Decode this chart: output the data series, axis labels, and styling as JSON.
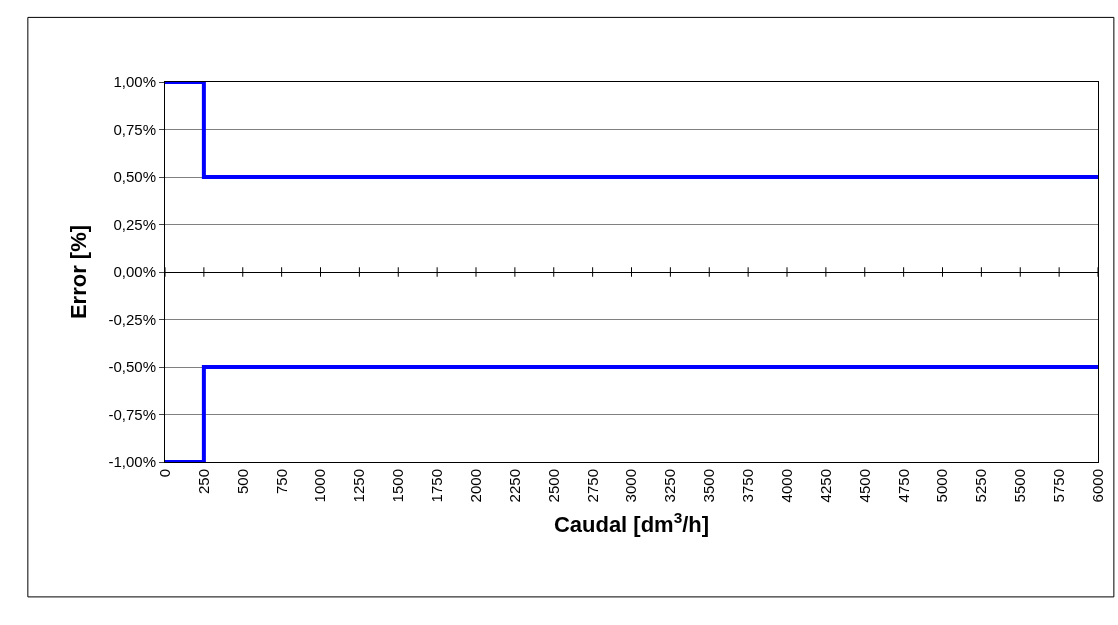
{
  "chart_data": {
    "type": "step",
    "xlabel": "Caudal [dm$^{3}$/h]",
    "ylabel": "Error [%]",
    "x": [
      0,
      250,
      6000
    ],
    "series": [
      {
        "color": "#0000ff",
        "values": [
          1,
          0.5,
          0.5
        ]
      },
      {
        "color": "#0000ff",
        "values": [
          -1,
          -0.5,
          -0.5
        ]
      }
    ],
    "xlim": [
      0,
      6000
    ],
    "xticks": [
      0,
      250,
      500,
      750,
      1000,
      1250,
      1500,
      1750,
      2000,
      2250,
      2500,
      2750,
      3000,
      3250,
      3500,
      3750,
      4000,
      4250,
      4500,
      4750,
      5000,
      5250,
      5500,
      5750,
      6000
    ],
    "ylim": [
      -1,
      1
    ],
    "yticks": [
      {
        "value": 1,
        "label": "1,00%"
      },
      {
        "value": 0.75,
        "label": "0,75%"
      },
      {
        "value": 0.5,
        "label": "0,50%"
      },
      {
        "value": 0.25,
        "label": "0,25%"
      },
      {
        "value": 0,
        "label": "0,00%"
      },
      {
        "value": -0.25,
        "label": "-0,25%"
      },
      {
        "value": -0.5,
        "label": "-0,50%"
      },
      {
        "value": -0.75,
        "label": "-0,75%"
      },
      {
        "value": -1,
        "label": "-1,00%"
      }
    ],
    "grid": "y",
    "marker": "none",
    "line_style": "solid"
  }
}
